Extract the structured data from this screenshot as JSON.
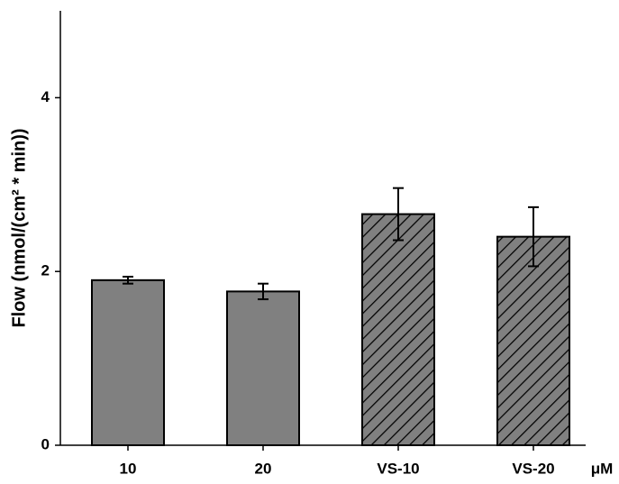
{
  "chart_data": {
    "type": "bar",
    "y_label": "Flow (nmol/(cm² * min))",
    "x_label": "μM",
    "categories": [
      "10",
      "20",
      "VS-10",
      "VS-20"
    ],
    "values": [
      1.9,
      1.77,
      2.66,
      2.4
    ],
    "errors": [
      0.04,
      0.09,
      0.3,
      0.34
    ],
    "hatched": [
      false,
      false,
      true,
      true
    ],
    "color": "#808080",
    "ylim": [
      0,
      5
    ],
    "yticks": [
      0,
      2,
      4
    ],
    "grid": false
  }
}
